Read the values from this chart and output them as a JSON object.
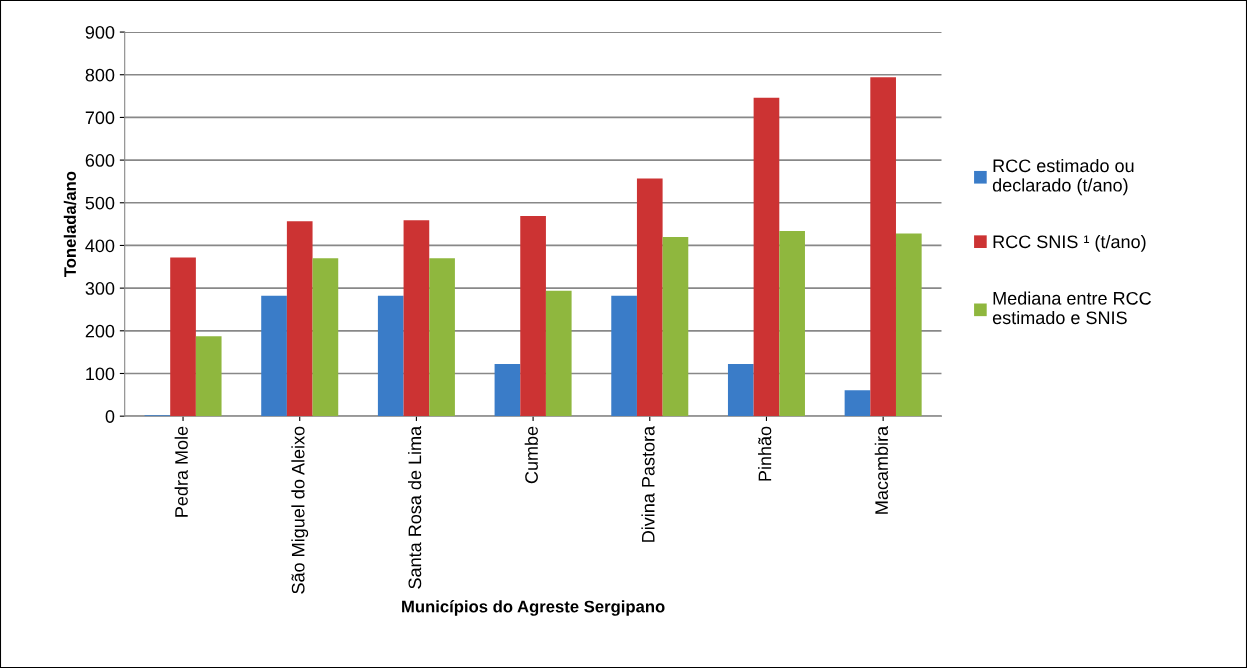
{
  "chart_data": {
    "type": "bar",
    "xlabel": "Municípios do Agreste Sergipano",
    "ylabel": "Tonelada/ano",
    "categories": [
      "Pedra Mole",
      "São Miguel do Aleixo",
      "Santa Rosa de Lima",
      "Cumbe",
      "Divina Pastora",
      "Pinhão",
      "Macambira"
    ],
    "series": [
      {
        "name": "RCC estimado ou\ndeclarado (t/ano)",
        "color": "#3a7cc8",
        "values": [
          2,
          282,
          282,
          122,
          282,
          122,
          61
        ]
      },
      {
        "name": "RCC SNIS ¹ (t/ano)",
        "color": "#cc3333",
        "values": [
          372,
          457,
          459,
          469,
          557,
          746,
          794
        ]
      },
      {
        "name": "Mediana entre RCC\nestimado e SNIS",
        "color": "#8fb73e",
        "values": [
          187,
          370,
          370,
          294,
          420,
          434,
          428
        ]
      }
    ],
    "ylim": [
      0,
      900
    ],
    "yticks": [
      0,
      100,
      200,
      300,
      400,
      500,
      600,
      700,
      800,
      900
    ],
    "grid": "y",
    "legend": "right"
  }
}
